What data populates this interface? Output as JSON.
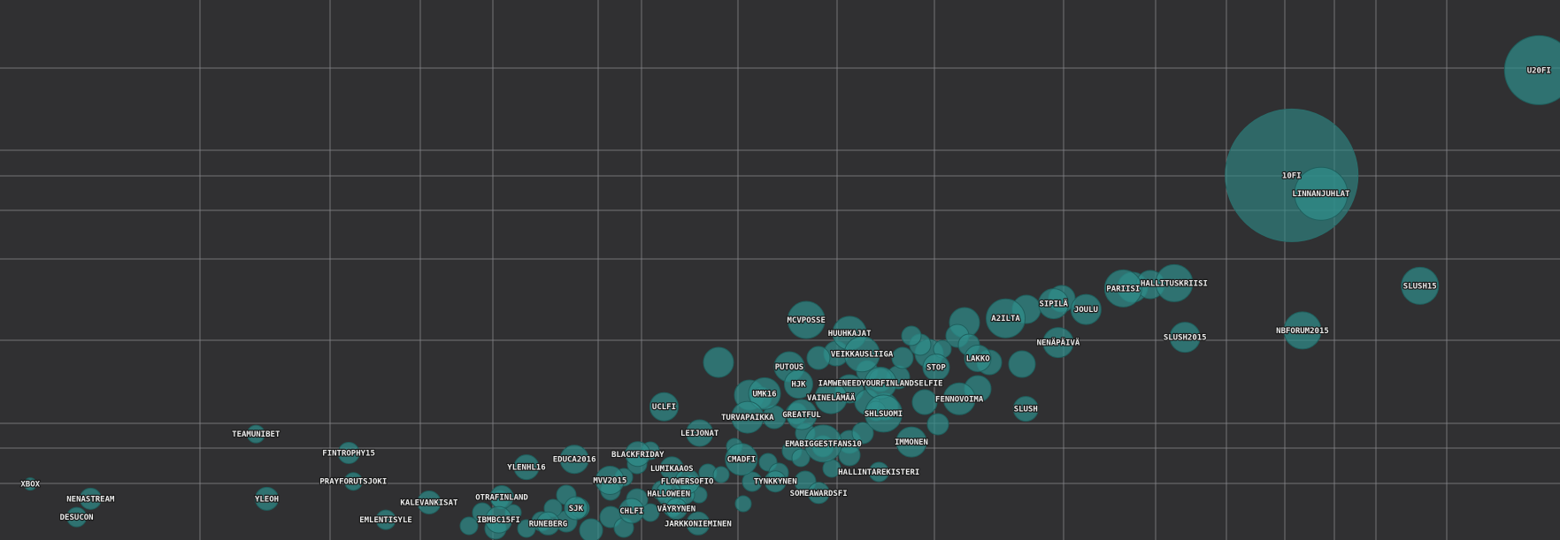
{
  "chart_data": {
    "type": "scatter",
    "title": "",
    "xlabel": "",
    "ylabel": "",
    "grid": true,
    "legend": "none",
    "colors": {
      "background": "#303032",
      "bubble": "#2f8f8c",
      "grid": "#8a8a8e",
      "label": "#e9e9e9"
    },
    "points": [
      {
        "name": "u20fi",
        "label": "U20FI",
        "x": 0.991,
        "y": 0.88,
        "r": 39
      },
      {
        "name": "10fi",
        "label": "10FI",
        "x": 0.831,
        "y": 0.68,
        "r": 75
      },
      {
        "name": "linnanjuhlat",
        "label": "LINNANJUHLAT",
        "x": 0.85,
        "y": 0.645,
        "r": 30
      },
      {
        "name": "slush15",
        "label": "SLUSH15",
        "x": 0.914,
        "y": 0.47,
        "r": 21
      },
      {
        "name": "nbforum2015",
        "label": "NBFORUM2015",
        "x": 0.838,
        "y": 0.385,
        "r": 21
      },
      {
        "name": "pariisi",
        "label": "PARIISI",
        "x": 0.722,
        "y": 0.465,
        "r": 21
      },
      {
        "name": "hallituskriisi",
        "label": "HALLITUSKRIISI",
        "x": 0.755,
        "y": 0.475,
        "r": 21
      },
      {
        "name": "slush2015",
        "label": "SLUSH2015",
        "x": 0.762,
        "y": 0.372,
        "r": 17
      },
      {
        "name": "sipila",
        "label": "SIPILÄ",
        "x": 0.677,
        "y": 0.436,
        "r": 17
      },
      {
        "name": "joulu",
        "label": "JOULU",
        "x": 0.698,
        "y": 0.425,
        "r": 17
      },
      {
        "name": "a2ilta",
        "label": "A2ILTA",
        "x": 0.646,
        "y": 0.408,
        "r": 22
      },
      {
        "name": "nenapaiva",
        "label": "NENÄPÄIVÄ",
        "x": 0.68,
        "y": 0.362,
        "r": 17
      },
      {
        "name": "lakko",
        "label": "LAKKO",
        "x": 0.628,
        "y": 0.332,
        "r": 15
      },
      {
        "name": "stop",
        "label": "STOP",
        "x": 0.601,
        "y": 0.315,
        "r": 15
      },
      {
        "name": "mcvposse",
        "label": "MCVPOSSE",
        "x": 0.517,
        "y": 0.405,
        "r": 21
      },
      {
        "name": "huuhkajat",
        "label": "HUUHKAJAT",
        "x": 0.545,
        "y": 0.38,
        "r": 19
      },
      {
        "name": "veikkausliiga",
        "label": "VEIKKAUSLIIGA",
        "x": 0.553,
        "y": 0.34,
        "r": 20
      },
      {
        "name": "putous",
        "label": "PUTOUS",
        "x": 0.506,
        "y": 0.316,
        "r": 17
      },
      {
        "name": "hjk",
        "label": "HJK",
        "x": 0.512,
        "y": 0.283,
        "r": 16
      },
      {
        "name": "iamweneedyourfinlandselfie",
        "label": "IAMWENEEDYOURFINLANDSELFIE",
        "x": 0.565,
        "y": 0.285,
        "r": 18
      },
      {
        "name": "umk16",
        "label": "UMK16",
        "x": 0.49,
        "y": 0.265,
        "r": 18
      },
      {
        "name": "vainelama",
        "label": "VAINELÄMÄÄ",
        "x": 0.533,
        "y": 0.257,
        "r": 18
      },
      {
        "name": "fennovoima",
        "label": "FENNOVOIMA",
        "x": 0.616,
        "y": 0.255,
        "r": 18
      },
      {
        "name": "uclfi",
        "label": "UCLFI",
        "x": 0.425,
        "y": 0.24,
        "r": 16
      },
      {
        "name": "turvapaikka",
        "label": "TURVAPAIKKA",
        "x": 0.479,
        "y": 0.22,
        "r": 18
      },
      {
        "name": "greatful",
        "label": "GREATFUL",
        "x": 0.514,
        "y": 0.225,
        "r": 17
      },
      {
        "name": "shlsuomi",
        "label": "SHLSUOMI",
        "x": 0.567,
        "y": 0.227,
        "r": 21
      },
      {
        "name": "slush",
        "label": "SLUSH",
        "x": 0.659,
        "y": 0.236,
        "r": 14
      },
      {
        "name": "leijonat",
        "label": "LEIJONAT",
        "x": 0.448,
        "y": 0.19,
        "r": 15
      },
      {
        "name": "emabiggestfans10",
        "label": "EMABIGGESTFANS10",
        "x": 0.528,
        "y": 0.17,
        "r": 21
      },
      {
        "name": "immonen",
        "label": "IMMONEN",
        "x": 0.585,
        "y": 0.173,
        "r": 17
      },
      {
        "name": "cmadfi",
        "label": "CMADFI",
        "x": 0.475,
        "y": 0.14,
        "r": 18
      },
      {
        "name": "hallintarekisteri",
        "label": "HALLINTAREKISTERI",
        "x": 0.564,
        "y": 0.116,
        "r": 11
      },
      {
        "name": "tynkkynen",
        "label": "TYNKKYNEN",
        "x": 0.497,
        "y": 0.098,
        "r": 12
      },
      {
        "name": "someawardsfi",
        "label": "SOMEAWARDSFI",
        "x": 0.525,
        "y": 0.076,
        "r": 12
      },
      {
        "name": "blackfriday",
        "label": "BLACKFRIDAY",
        "x": 0.408,
        "y": 0.15,
        "r": 14
      },
      {
        "name": "lumikaaos",
        "label": "LUMIKAAOS",
        "x": 0.43,
        "y": 0.123,
        "r": 13
      },
      {
        "name": "flowersofio",
        "label": "FLOWERSOFIO",
        "x": 0.44,
        "y": 0.098,
        "r": 14
      },
      {
        "name": "halloween",
        "label": "HALLOWEEN",
        "x": 0.428,
        "y": 0.075,
        "r": 14
      },
      {
        "name": "vayrynen",
        "label": "VÄYRYNEN",
        "x": 0.433,
        "y": 0.046,
        "r": 12
      },
      {
        "name": "jarkkonieminen",
        "label": "JARKKONIEMINEN",
        "x": 0.447,
        "y": 0.018,
        "r": 13
      },
      {
        "name": "chlfi",
        "label": "CHLFI",
        "x": 0.404,
        "y": 0.042,
        "r": 14
      },
      {
        "name": "mvv2015",
        "label": "MVV2015",
        "x": 0.39,
        "y": 0.1,
        "r": 16
      },
      {
        "name": "educa2016",
        "label": "EDUCA2016",
        "x": 0.367,
        "y": 0.14,
        "r": 16
      },
      {
        "name": "ylenhl16",
        "label": "YLENHL16",
        "x": 0.336,
        "y": 0.125,
        "r": 14
      },
      {
        "name": "otrafinland",
        "label": "OTRAFINLAND",
        "x": 0.32,
        "y": 0.068,
        "r": 13
      },
      {
        "name": "ibmbc15fi",
        "label": "IBMBC15FI",
        "x": 0.318,
        "y": 0.025,
        "r": 15
      },
      {
        "name": "sjk",
        "label": "SJK",
        "x": 0.368,
        "y": 0.047,
        "r": 13
      },
      {
        "name": "runeberg",
        "label": "RUNEBERG",
        "x": 0.35,
        "y": 0.018,
        "r": 13
      },
      {
        "name": "kalevankisat",
        "label": "KALEVANKISAT",
        "x": 0.273,
        "y": 0.058,
        "r": 13
      },
      {
        "name": "emlentisyle",
        "label": "EMLENTISYLE",
        "x": 0.245,
        "y": 0.025,
        "r": 11
      },
      {
        "name": "prayforutsjoki",
        "label": "PRAYFORUTSJOKI",
        "x": 0.224,
        "y": 0.098,
        "r": 10
      },
      {
        "name": "fintrophy15",
        "label": "FINTROPHY15",
        "x": 0.221,
        "y": 0.152,
        "r": 12
      },
      {
        "name": "teamunibet",
        "label": "TEAMUNIBET",
        "x": 0.161,
        "y": 0.188,
        "r": 10
      },
      {
        "name": "yleoh",
        "label": "YLEOH",
        "x": 0.168,
        "y": 0.065,
        "r": 13
      },
      {
        "name": "xbox",
        "label": "XBOX",
        "x": 0.015,
        "y": 0.093,
        "r": 7
      },
      {
        "name": "nenastream",
        "label": "NENASTREAM",
        "x": 0.054,
        "y": 0.065,
        "r": 12
      },
      {
        "name": "desucon",
        "label": "DESUCON",
        "x": 0.045,
        "y": 0.03,
        "r": 11
      }
    ]
  }
}
